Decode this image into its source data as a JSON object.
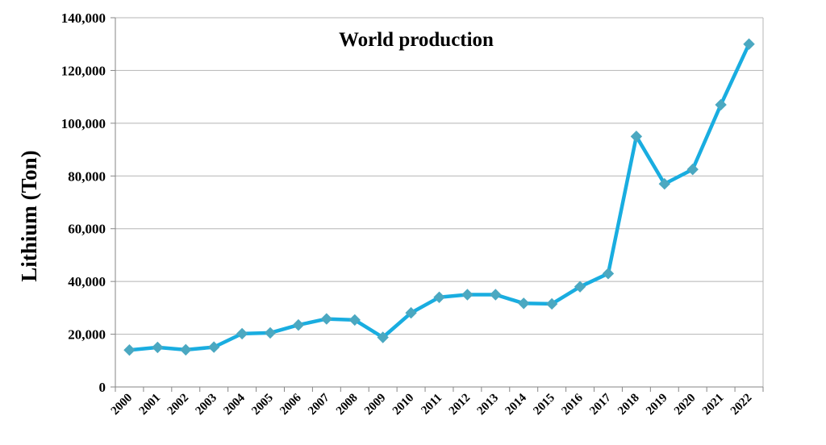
{
  "chart_data": {
    "type": "line",
    "title": "World production",
    "xlabel": "",
    "ylabel": "Lithium (Ton)",
    "categories": [
      "2000",
      "2001",
      "2002",
      "2003",
      "2004",
      "2005",
      "2006",
      "2007",
      "2008",
      "2009",
      "2010",
      "2011",
      "2012",
      "2013",
      "2014",
      "2015",
      "2016",
      "2017",
      "2018",
      "2019",
      "2020",
      "2021",
      "2022"
    ],
    "series": [
      {
        "values": [
          14000,
          15000,
          14100,
          15100,
          20200,
          20500,
          23500,
          25800,
          25400,
          18800,
          28100,
          34000,
          35000,
          35000,
          31700,
          31500,
          38000,
          43000,
          95000,
          77000,
          82500,
          107000,
          130000
        ]
      }
    ],
    "ylim": [
      0,
      140000
    ],
    "yticks": [
      "0",
      "20,000",
      "40,000",
      "60,000",
      "80,000",
      "100,000",
      "120,000",
      "140,000"
    ],
    "grid": true,
    "legend": "none",
    "colors": {
      "line": "#19ADE0",
      "marker": "#4BA8C1",
      "grid": "#B5B5B5",
      "axis": "#868686"
    }
  }
}
